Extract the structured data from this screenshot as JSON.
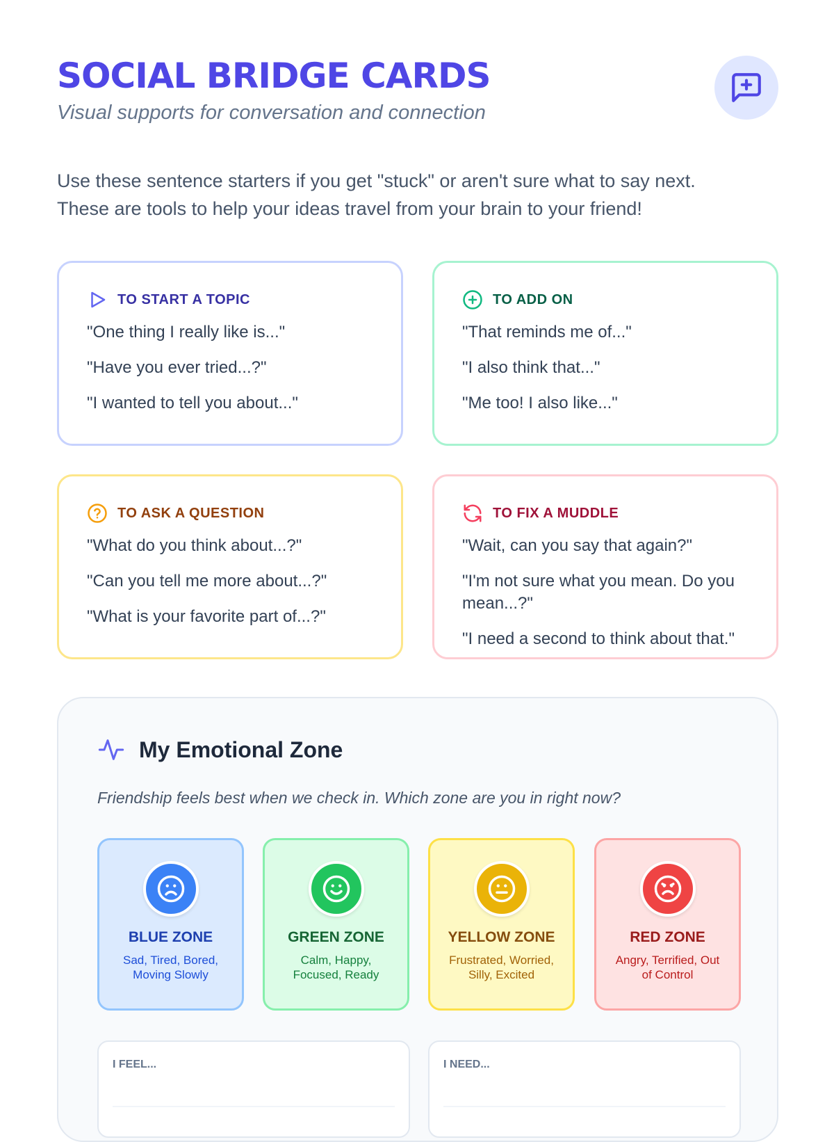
{
  "header": {
    "title": "SOCIAL BRIDGE CARDS",
    "subtitle": "Visual supports for conversation and connection",
    "icon": "message-plus-icon"
  },
  "intro": [
    "Use these sentence starters if you get \"stuck\" or aren't sure what to say next.",
    "These are tools to help your ideas travel from your brain to your friend!"
  ],
  "cards": [
    {
      "title": "TO START A TOPIC",
      "icon": "play-icon",
      "color": "#3730a3",
      "border": "#c7d2fe",
      "phrases": [
        "\"One thing I really like is...\"",
        "\"Have you ever tried...?\"",
        "\"I wanted to tell you about...\""
      ]
    },
    {
      "title": "TO ADD ON",
      "icon": "plus-circle-icon",
      "color": "#065f46",
      "border": "#a7f3d0",
      "phrases": [
        "\"That reminds me of...\"",
        "\"I also think that...\"",
        "\"Me too! I also like...\""
      ]
    },
    {
      "title": "TO ASK A QUESTION",
      "icon": "question-circle-icon",
      "color": "#92400e",
      "border": "#fde68a",
      "phrases": [
        "\"What do you think about...?\"",
        "\"Can you tell me more about...?\"",
        "\"What is your favorite part of...?\""
      ]
    },
    {
      "title": "TO FIX A MUDDLE",
      "icon": "refresh-icon",
      "color": "#9f1239",
      "border": "#fecdd3",
      "phrases": [
        "\"Wait, can you say that again?\"",
        "\"I'm not sure what you mean. Do you mean...?\"",
        "\"I need a second to think about that.\""
      ]
    }
  ],
  "zones_section": {
    "title": "My Emotional Zone",
    "prompt": "Friendship feels best when we check in. Which zone are you in right now?",
    "zones": [
      {
        "name": "BLUE ZONE",
        "desc": "Sad, Tired, Bored, Moving Slowly",
        "icon": "sad-face-icon",
        "bg": "#dbeafe",
        "border": "#93c5fd",
        "face": "#3b82f6",
        "text": "#1e40af",
        "desc_color": "#1d4ed8"
      },
      {
        "name": "GREEN ZONE",
        "desc": "Calm, Happy, Focused, Ready",
        "icon": "smile-face-icon",
        "bg": "#dcfce7",
        "border": "#86efac",
        "face": "#22c55e",
        "text": "#166534",
        "desc_color": "#15803d"
      },
      {
        "name": "YELLOW ZONE",
        "desc": "Frustrated, Worried, Silly, Excited",
        "icon": "neutral-face-icon",
        "bg": "#fef9c3",
        "border": "#fde047",
        "face": "#eab308",
        "text": "#854d0e",
        "desc_color": "#a16207"
      },
      {
        "name": "RED ZONE",
        "desc": "Angry, Terrified, Out of Control",
        "icon": "angry-face-icon",
        "bg": "#fee2e2",
        "border": "#fca5a5",
        "face": "#ef4444",
        "text": "#991b1b",
        "desc_color": "#b91c1c"
      }
    ],
    "feel_label": "I FEEL...",
    "need_label": "I NEED..."
  }
}
